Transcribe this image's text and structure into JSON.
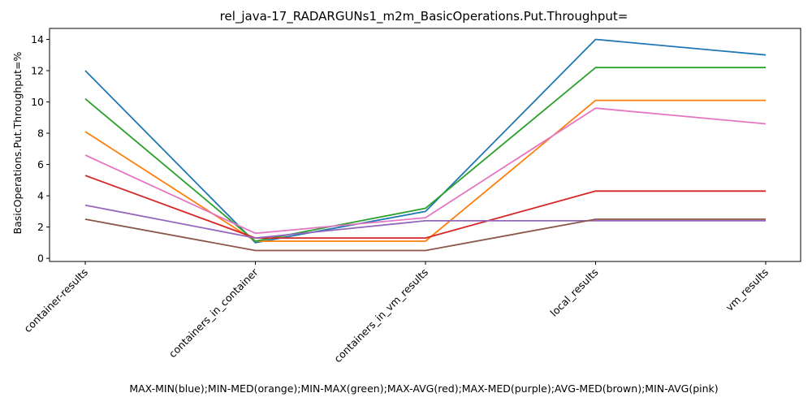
{
  "chart_data": {
    "type": "line",
    "title": "rel_java-17_RADARGUNs1_m2m_BasicOperations.Put.Throughput=",
    "xlabel": "MAX-MIN(blue);MIN-MED(orange);MIN-MAX(green);MAX-AVG(red);MAX-MED(purple);AVG-MED(brown);MIN-AVG(pink)",
    "ylabel": "BasicOperations.Put.Throughput=%",
    "categories": [
      "container-results",
      "containers_in_container",
      "containers_in_vm_results",
      "local_results",
      "vm_results"
    ],
    "ylim": [
      -0.2,
      14.7
    ],
    "yticks": [
      0,
      2,
      4,
      6,
      8,
      10,
      12,
      14
    ],
    "grid": false,
    "series": [
      {
        "color": "#1f77b4",
        "values": [
          12.0,
          1.0,
          3.0,
          14.0,
          13.0
        ]
      },
      {
        "color": "#ff7f0e",
        "values": [
          8.1,
          1.1,
          1.1,
          10.1,
          10.1
        ]
      },
      {
        "color": "#2ca02c",
        "values": [
          10.2,
          1.1,
          3.2,
          12.2,
          12.2
        ]
      },
      {
        "color": "#d62728",
        "values": [
          5.3,
          1.3,
          1.3,
          4.3,
          4.3
        ]
      },
      {
        "color": "#9467bd",
        "values": [
          3.4,
          1.3,
          2.4,
          2.4,
          2.4
        ]
      },
      {
        "color": "#8c564b",
        "values": [
          2.5,
          0.5,
          0.5,
          2.5,
          2.5
        ]
      },
      {
        "color": "#e377c2",
        "values": [
          6.6,
          1.6,
          2.6,
          9.6,
          8.6
        ]
      }
    ]
  }
}
